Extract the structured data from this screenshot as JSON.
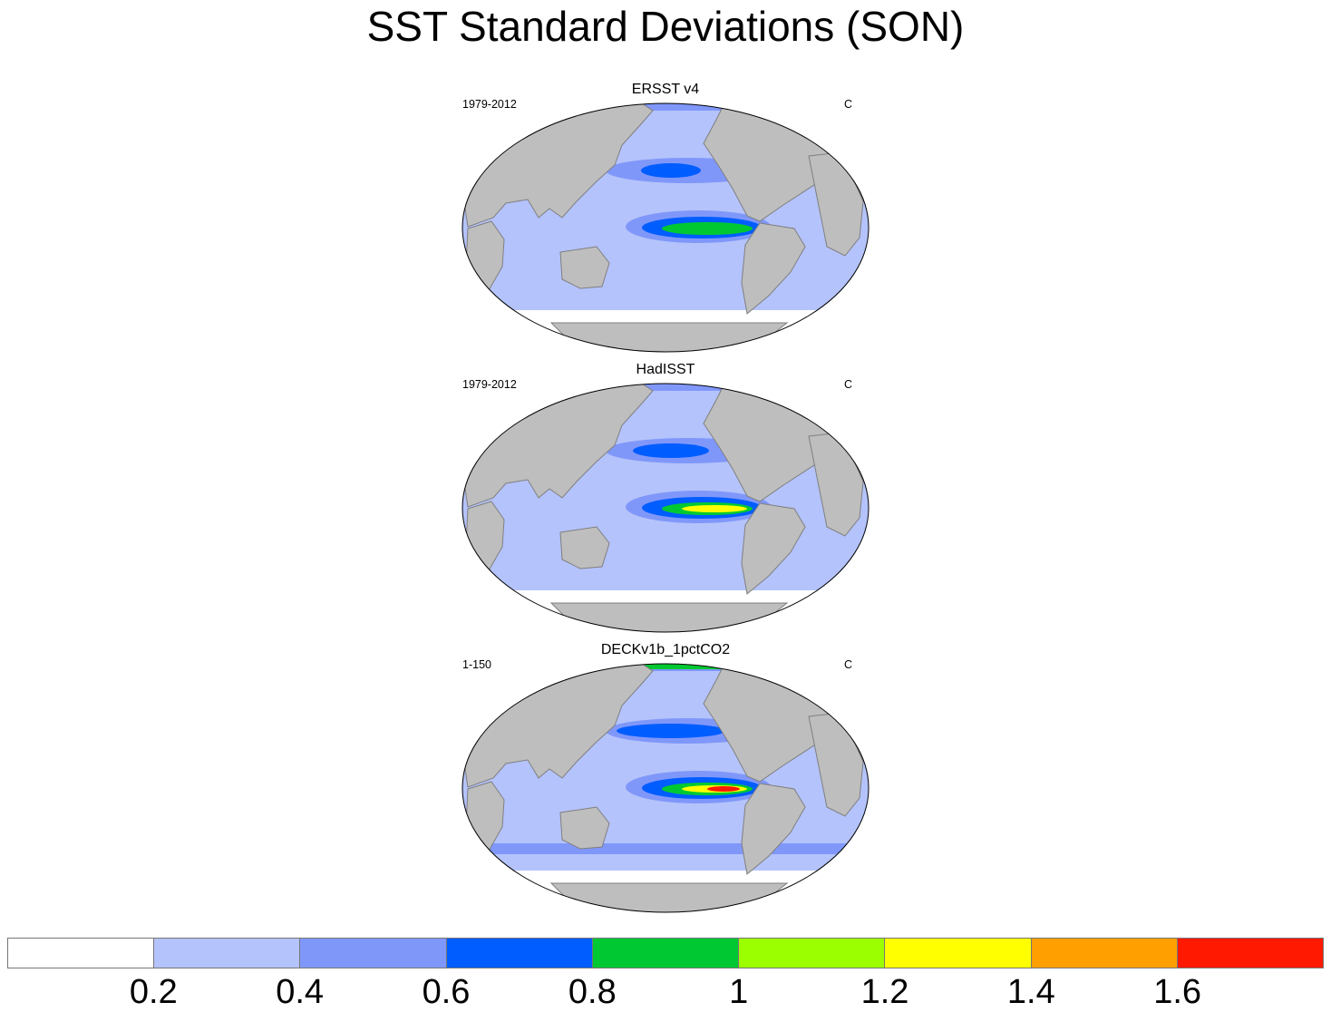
{
  "title": "SST Standard Deviations (SON)",
  "panels": [
    {
      "title": "ERSST v4",
      "period": "1979-2012",
      "units": "C",
      "intensity": 0.55
    },
    {
      "title": "HadISST",
      "period": "1979-2012",
      "units": "C",
      "intensity": 0.7
    },
    {
      "title": "DECKv1b_1pctCO2",
      "period": "1-150",
      "units": "C",
      "intensity": 1.0
    }
  ],
  "colorbar": {
    "colors": [
      "#ffffff",
      "#b4c3fb",
      "#8097fa",
      "#005dff",
      "#00c832",
      "#9bff00",
      "#ffff00",
      "#ffa000",
      "#ff1900"
    ],
    "labels": [
      "0.2",
      "0.4",
      "0.6",
      "0.8",
      "1",
      "1.2",
      "1.4",
      "1.6"
    ]
  },
  "map_colors": {
    "land": "#bebebe",
    "coast": "#7f7f7f"
  }
}
